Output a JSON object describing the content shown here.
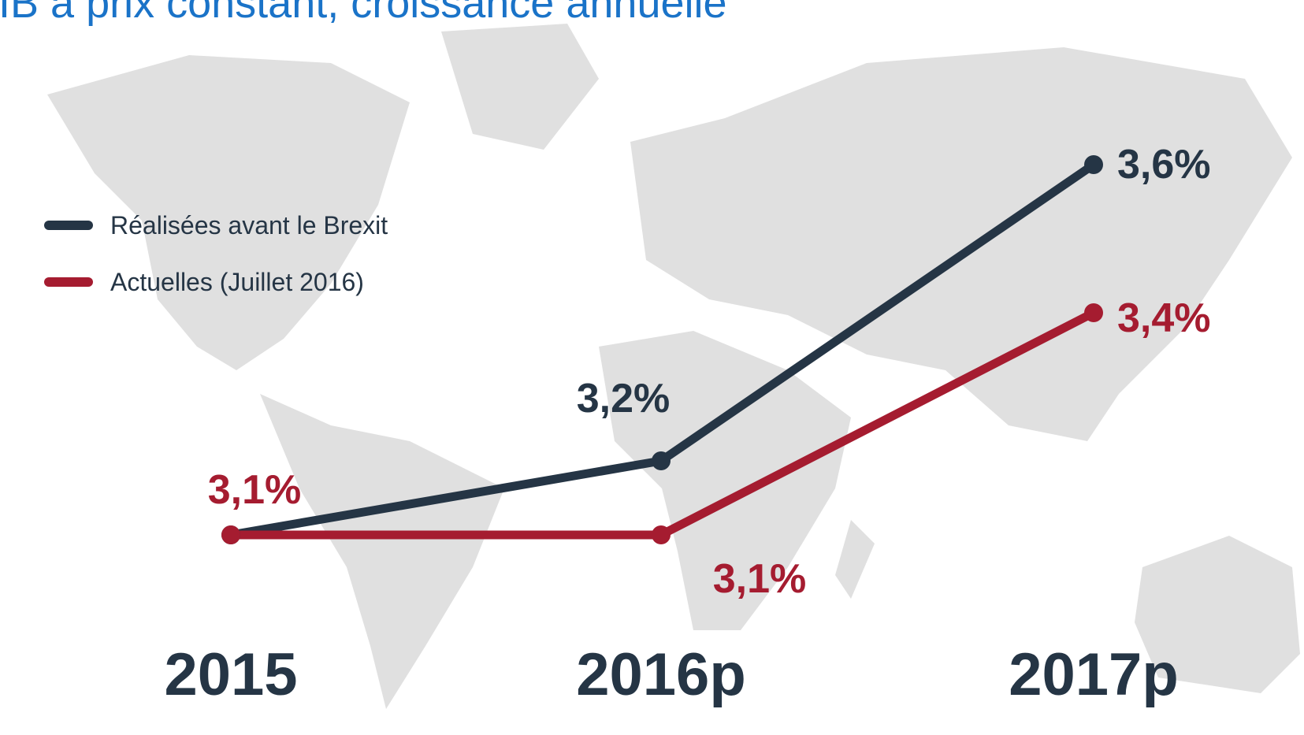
{
  "chart_data": {
    "type": "line",
    "title": "PIB à prix constant, croissance annuelle",
    "categories": [
      "2015",
      "2016p",
      "2017p"
    ],
    "series": [
      {
        "name": "Réalisées avant le Brexit",
        "color": "#253545",
        "values": [
          3.1,
          3.2,
          3.6
        ],
        "value_labels": [
          null,
          "3,2%",
          "3,6%"
        ]
      },
      {
        "name": "Actuelles (Juillet 2016)",
        "color": "#a51c30",
        "values": [
          3.1,
          3.1,
          3.4
        ],
        "value_labels": [
          "3,1%",
          "3,1%",
          "3,4%"
        ]
      }
    ]
  }
}
